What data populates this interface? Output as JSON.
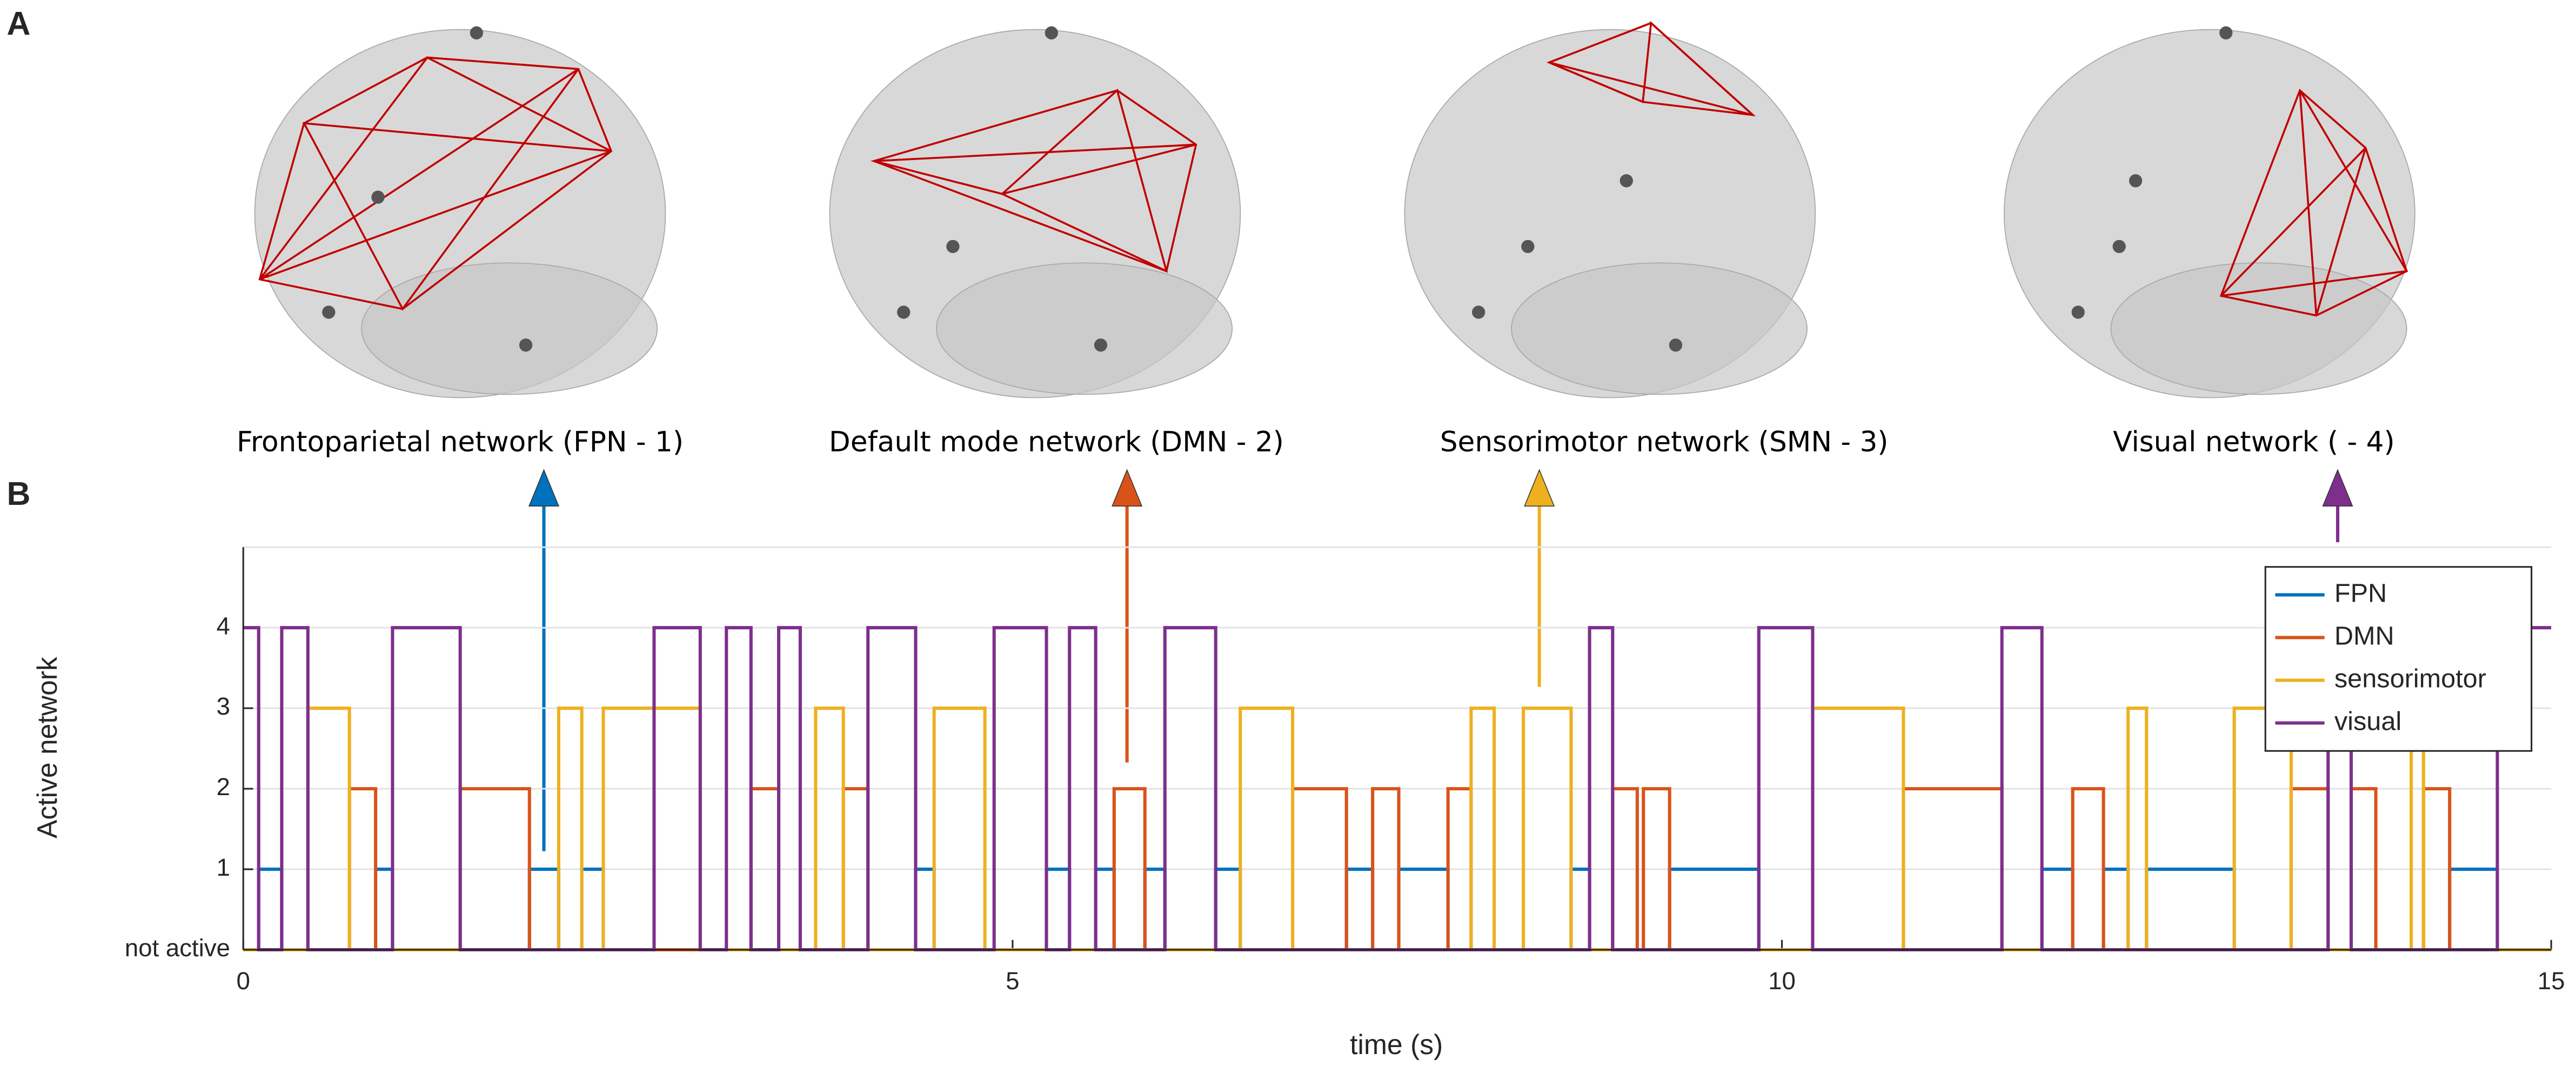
{
  "panel_a": {
    "label": "A",
    "networks": [
      "Frontoparietal network (FPN - 1)",
      "Default mode network (DMN - 2)",
      "Sensorimotor network (SMN - 3)",
      "Visual network ( - 4)"
    ]
  },
  "chart_data": {
    "type": "line",
    "panel_label": "B",
    "drawstyle": "steps-post",
    "xlabel": "time (s)",
    "ylabel": "Active network",
    "xlim": [
      0,
      15
    ],
    "xticks": [
      0,
      5,
      10,
      15
    ],
    "ylim": [
      0,
      5
    ],
    "yticks": [
      {
        "value": 0,
        "label": "not active"
      },
      1,
      2,
      3,
      4
    ],
    "grid": true,
    "legend": "upper right",
    "series": [
      {
        "name": "FPN",
        "color": "#0072bd",
        "x": [
          0,
          0.1,
          0.25,
          0.86,
          0.97,
          1.86,
          2.05,
          2.2,
          2.34,
          4.37,
          4.49,
          5.22,
          5.37,
          5.54,
          5.66,
          5.86,
          5.99,
          6.32,
          6.48,
          7.17,
          7.34,
          7.51,
          7.83,
          8.63,
          8.75,
          9.27,
          9.85,
          11.69,
          11.89,
          12.09,
          12.25,
          12.37,
          12.94,
          14.34,
          14.65,
          15
        ],
        "values": [
          0,
          1,
          0,
          1,
          0,
          1,
          0,
          1,
          0,
          1,
          0,
          1,
          0,
          1,
          0,
          1,
          0,
          1,
          0,
          1,
          0,
          1,
          0,
          1,
          0,
          1,
          0,
          1,
          0,
          1,
          0,
          1,
          0,
          1,
          0,
          0
        ]
      },
      {
        "name": "DMN",
        "color": "#d95319",
        "x": [
          0,
          0.69,
          0.86,
          1.41,
          1.86,
          3.3,
          3.48,
          3.9,
          4.06,
          5.66,
          5.86,
          6.82,
          7.17,
          7.34,
          7.51,
          7.83,
          7.98,
          8.9,
          9.06,
          9.1,
          9.27,
          10.79,
          11.43,
          11.89,
          12.09,
          13.31,
          13.55,
          13.7,
          13.86,
          14.17,
          14.34,
          15
        ],
        "values": [
          0,
          2,
          0,
          2,
          0,
          2,
          0,
          2,
          0,
          2,
          0,
          2,
          0,
          2,
          0,
          2,
          0,
          2,
          0,
          2,
          0,
          2,
          0,
          2,
          0,
          2,
          0,
          2,
          0,
          2,
          0,
          0
        ]
      },
      {
        "name": "sensorimotor",
        "color": "#edb120",
        "x": [
          0,
          0.42,
          0.69,
          2.05,
          2.2,
          2.34,
          2.97,
          3.72,
          3.9,
          4.49,
          4.82,
          6.48,
          6.82,
          7.98,
          8.13,
          8.32,
          8.63,
          10.2,
          10.79,
          12.25,
          12.37,
          12.94,
          13.31,
          14.09,
          14.17,
          15
        ],
        "values": [
          0,
          3,
          0,
          3,
          0,
          3,
          0,
          3,
          0,
          3,
          0,
          3,
          0,
          3,
          0,
          3,
          0,
          3,
          0,
          3,
          0,
          3,
          0,
          3,
          0,
          0
        ]
      },
      {
        "name": "visual",
        "color": "#7e2f8e",
        "x": [
          0,
          0.1,
          0.25,
          0.42,
          0.97,
          1.41,
          2.67,
          2.97,
          3.14,
          3.3,
          3.48,
          3.62,
          4.06,
          4.37,
          4.88,
          5.22,
          5.37,
          5.54,
          5.99,
          6.32,
          8.75,
          8.9,
          9.85,
          10.2,
          11.43,
          11.69,
          13.55,
          13.7,
          14.65,
          15
        ],
        "values": [
          4,
          0,
          4,
          0,
          4,
          0,
          4,
          0,
          4,
          0,
          4,
          0,
          4,
          0,
          4,
          0,
          4,
          0,
          4,
          0,
          4,
          0,
          4,
          0,
          4,
          0,
          4,
          0,
          4,
          4
        ]
      }
    ]
  }
}
